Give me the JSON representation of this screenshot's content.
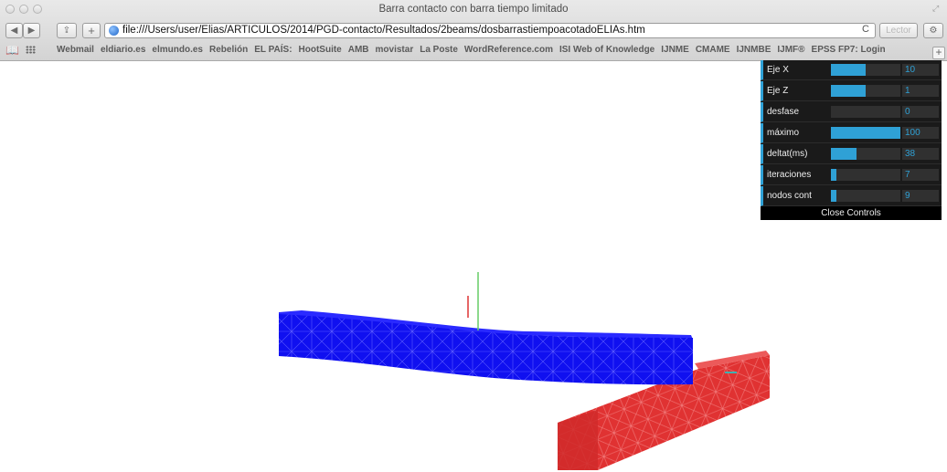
{
  "window": {
    "title": "Barra contacto con barra tiempo limitado"
  },
  "toolbar": {
    "url": "file:///Users/user/Elias/ARTICULOS/2014/PGD-contacto/Resultados/2beams/dosbarrastiempoacotadoELIAs.htm",
    "reader_label": "Lector",
    "back_glyph": "◀",
    "forward_glyph": "▶",
    "share_glyph": "⇪",
    "newtab_glyph": "+",
    "reload_glyph": "C",
    "gear_glyph": "⚙"
  },
  "bookmarks": [
    "Webmail",
    "eldiario.es",
    "elmundo.es",
    "Rebelión",
    "EL PAÍS:",
    "HootSuite",
    "AMB",
    "movistar",
    "La Poste",
    "WordReference.com",
    "ISI Web of Knowledge",
    "IJNME",
    "CMAME",
    "IJNMBE",
    "IJMF®",
    "EPSS FP7: Login"
  ],
  "gui": {
    "controls": [
      {
        "label": "Eje X",
        "value": "10",
        "fraction": 0.5
      },
      {
        "label": "Eje Z",
        "value": "1",
        "fraction": 0.5
      },
      {
        "label": "desfase",
        "value": "0",
        "fraction": 0.0
      },
      {
        "label": "máximo",
        "value": "100",
        "fraction": 1.0
      },
      {
        "label": "deltat(ms)",
        "value": "38",
        "fraction": 0.37
      },
      {
        "label": "iteraciones",
        "value": "7",
        "fraction": 0.07
      },
      {
        "label": "nodos cont",
        "value": "9",
        "fraction": 0.09
      }
    ],
    "close_label": "Close Controls",
    "accent": "#2fa1d6"
  },
  "scene": {
    "beam_top_color": "#1010f0",
    "beam_bottom_color": "#e23232",
    "axis_y_color": "#66cc66",
    "axis_x_color": "#dd3333"
  }
}
